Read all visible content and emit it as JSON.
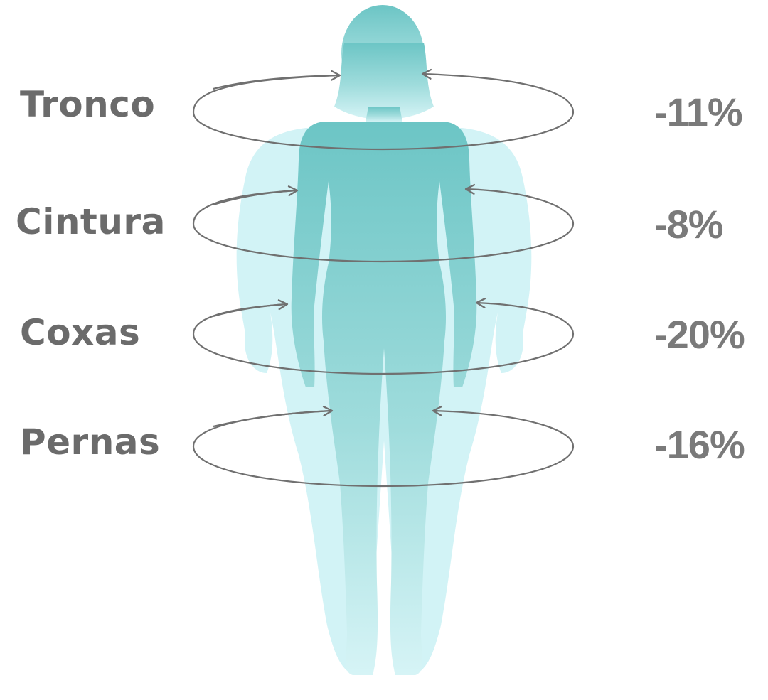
{
  "colors": {
    "figure_front": "#6cc6c6",
    "figure_back": "#d2f3f6",
    "ring": "#707070",
    "label": "#6b6b6b",
    "value": "#7a7a7a"
  },
  "zones": [
    {
      "label": "Tronco",
      "value": "-11%"
    },
    {
      "label": "Cintura",
      "value": "-8%"
    },
    {
      "label": "Coxas",
      "value": "-20%"
    },
    {
      "label": "Pernas",
      "value": "-16%"
    }
  ]
}
